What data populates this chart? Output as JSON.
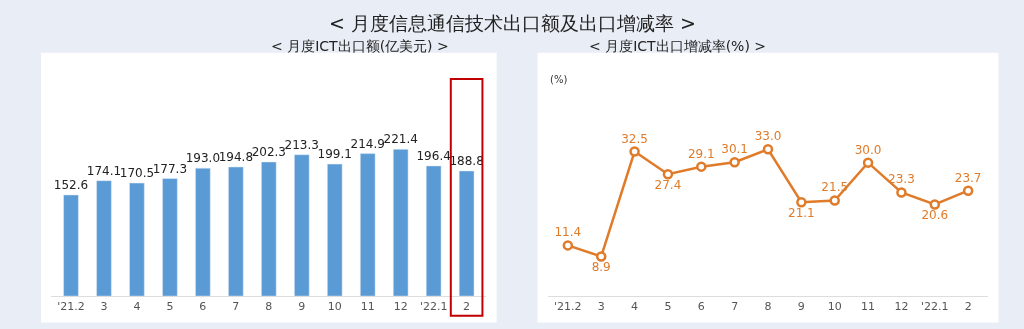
{
  "chart_data": [
    {
      "type": "other",
      "title": "< 月度信息通信技术出口额及出口增减率 >"
    },
    {
      "type": "bar",
      "title": "< 月度ICT出口额(亿美元) >",
      "categories": [
        "'21.2",
        "3",
        "4",
        "5",
        "6",
        "7",
        "8",
        "9",
        "10",
        "11",
        "12",
        "'22.1",
        "2"
      ],
      "values": [
        152.6,
        174.1,
        170.5,
        177.3,
        193.0,
        194.8,
        202.3,
        213.3,
        199.1,
        214.9,
        221.4,
        196.4,
        188.8
      ],
      "value_labels": [
        "152.6",
        "174.1",
        "170.5",
        "177.3",
        "193.0",
        "194.8",
        "202.3",
        "213.3",
        "199.1",
        "214.9",
        "221.4",
        "196.4",
        "188.8"
      ],
      "color": "#5b9bd5"
    },
    {
      "type": "line",
      "title": "< 月度ICT出口增减率(%) >",
      "ylabel": "(%)",
      "categories": [
        "'21.2",
        "3",
        "4",
        "5",
        "6",
        "7",
        "8",
        "9",
        "10",
        "11",
        "12",
        "'22.1",
        "2"
      ],
      "values": [
        11.4,
        8.9,
        32.5,
        27.4,
        29.1,
        30.1,
        33.0,
        21.1,
        21.5,
        30.0,
        23.3,
        20.6,
        23.7
      ],
      "value_labels": [
        "11.4",
        "8.9",
        "32.5",
        "27.4",
        "29.1",
        "30.1",
        "33.0",
        "21.1",
        "21.5",
        "30.0",
        "23.3",
        "20.6",
        "23.7"
      ],
      "color": "#e07b2a",
      "marker": "circle",
      "line_style": "solid"
    }
  ]
}
